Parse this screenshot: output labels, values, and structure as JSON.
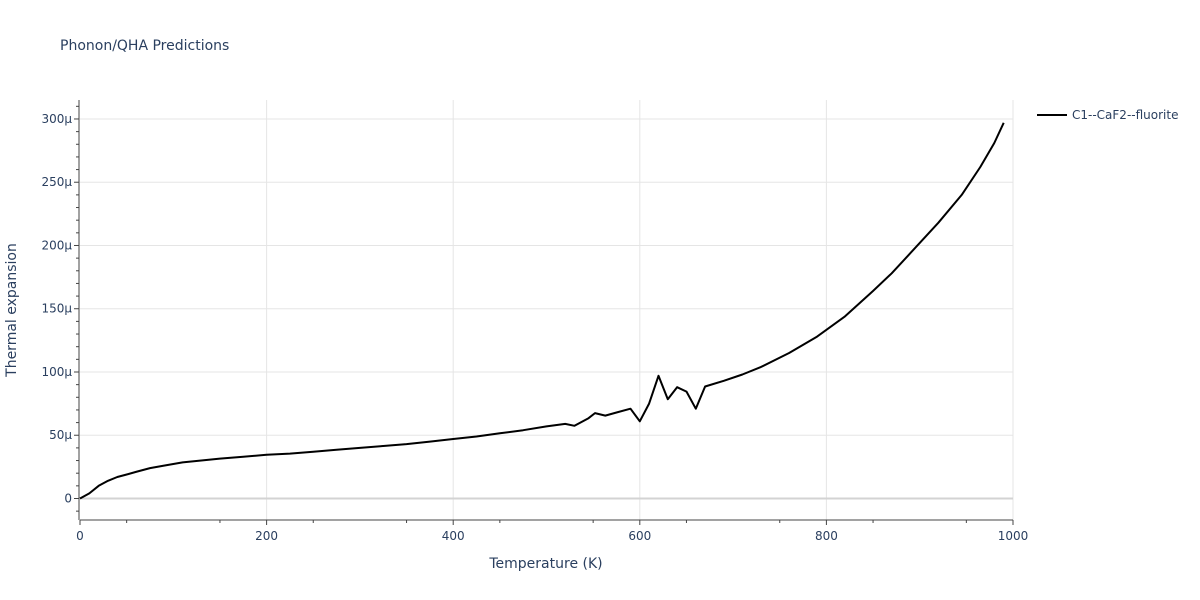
{
  "chart_data": {
    "type": "line",
    "title": "Phonon/QHA Predictions",
    "xlabel": "Temperature (K)",
    "ylabel": "Thermal expansion",
    "xlim": [
      0,
      1000
    ],
    "ylim": [
      -17,
      315
    ],
    "x_ticks": [
      0,
      200,
      400,
      600,
      800,
      1000
    ],
    "x_tick_labels": [
      "0",
      "200",
      "400",
      "600",
      "800",
      "1000"
    ],
    "y_ticks": [
      0,
      50,
      100,
      150,
      200,
      250,
      300
    ],
    "y_tick_labels": [
      "0",
      "50μ",
      "100μ",
      "150μ",
      "200μ",
      "250μ",
      "300μ"
    ],
    "y_unit_note": "values in units of 1e-6 (μ)",
    "grid": true,
    "legend_position": "top-right",
    "colors": {
      "series": "#000000",
      "grid": "#e5e5e5",
      "zeroline": "#d3d3d3",
      "text": "#2a3f5f"
    },
    "series": [
      {
        "name": "C1--CaF2--fluorite",
        "x": [
          0,
          10,
          20,
          30,
          40,
          50,
          60,
          75,
          90,
          110,
          130,
          150,
          175,
          200,
          225,
          250,
          275,
          300,
          325,
          350,
          375,
          400,
          425,
          450,
          475,
          500,
          520,
          530,
          545,
          552,
          563,
          575,
          590,
          600,
          610,
          620,
          630,
          640,
          650,
          660,
          670,
          690,
          710,
          730,
          760,
          790,
          820,
          850,
          870,
          890,
          920,
          945,
          965,
          980,
          990
        ],
        "y": [
          0,
          4,
          10,
          14,
          17,
          19,
          21,
          24,
          26,
          28.5,
          30,
          31.5,
          33,
          34.5,
          35.5,
          37,
          38.5,
          40,
          41.5,
          43,
          45,
          47,
          49,
          51.5,
          54,
          57,
          59,
          57.5,
          63.5,
          67.5,
          65.5,
          68,
          71,
          61,
          75,
          97,
          78.5,
          88,
          84.5,
          71,
          88.5,
          93,
          98,
          104,
          115,
          128,
          144,
          164,
          178,
          194,
          218,
          240,
          262,
          281,
          297
        ]
      }
    ]
  }
}
